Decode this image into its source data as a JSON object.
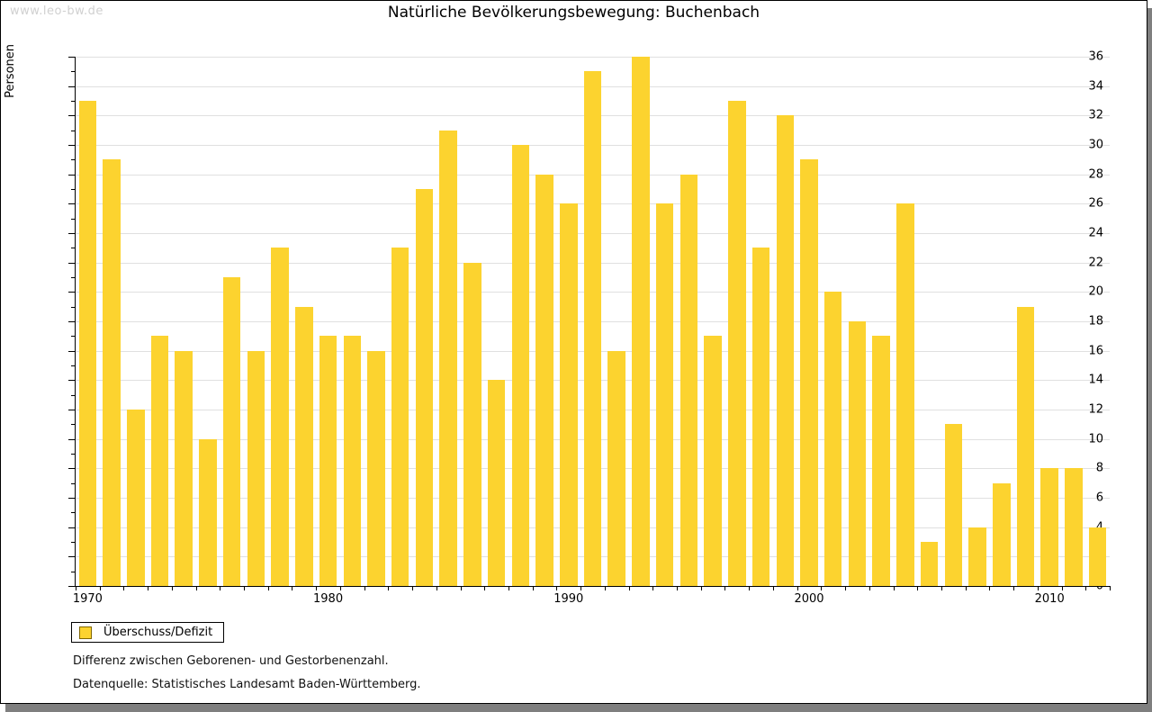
{
  "watermark": "www.leo-bw.de",
  "title": "Natürliche Bevölkerungsbewegung: Buchenbach",
  "legend": {
    "label": "Überschuss/Defizit"
  },
  "notes": [
    "Differenz zwischen Geborenen- und Gestorbenenzahl.",
    "Datenquelle: Statistisches Landesamt Baden-Württemberg."
  ],
  "colors": {
    "bar": "#fcd32f",
    "grid": "#e0e0e0",
    "axis": "#000000",
    "watermark": "#d0d0d0",
    "shadow": "#7f7f7f",
    "legend_swatch_border": "#806600"
  },
  "chart_data": {
    "type": "bar",
    "title": "Natürliche Bevölkerungsbewegung: Buchenbach",
    "ylabel": "Personen",
    "xlabel": "",
    "ylim": [
      0,
      36
    ],
    "ytick_step": 2,
    "grid": true,
    "legend_position": "bottom-left",
    "series_name": "Überschuss/Defizit",
    "xtick_labels": [
      "1970",
      "1980",
      "1990",
      "2000",
      "2010"
    ],
    "x": [
      1970,
      1971,
      1972,
      1973,
      1974,
      1975,
      1976,
      1977,
      1978,
      1979,
      1980,
      1981,
      1982,
      1983,
      1984,
      1985,
      1986,
      1987,
      1988,
      1989,
      1990,
      1991,
      1992,
      1993,
      1994,
      1995,
      1996,
      1997,
      1998,
      1999,
      2000,
      2001,
      2002,
      2003,
      2004,
      2005,
      2006,
      2007,
      2008,
      2009,
      2010,
      2011,
      2012
    ],
    "values": [
      33,
      29,
      12,
      17,
      16,
      10,
      21,
      16,
      23,
      19,
      17,
      17,
      16,
      23,
      27,
      31,
      22,
      14,
      30,
      28,
      26,
      35,
      16,
      36,
      26,
      28,
      17,
      33,
      23,
      32,
      29,
      20,
      18,
      17,
      26,
      3,
      11,
      4,
      7,
      19,
      8,
      8,
      4
    ]
  }
}
